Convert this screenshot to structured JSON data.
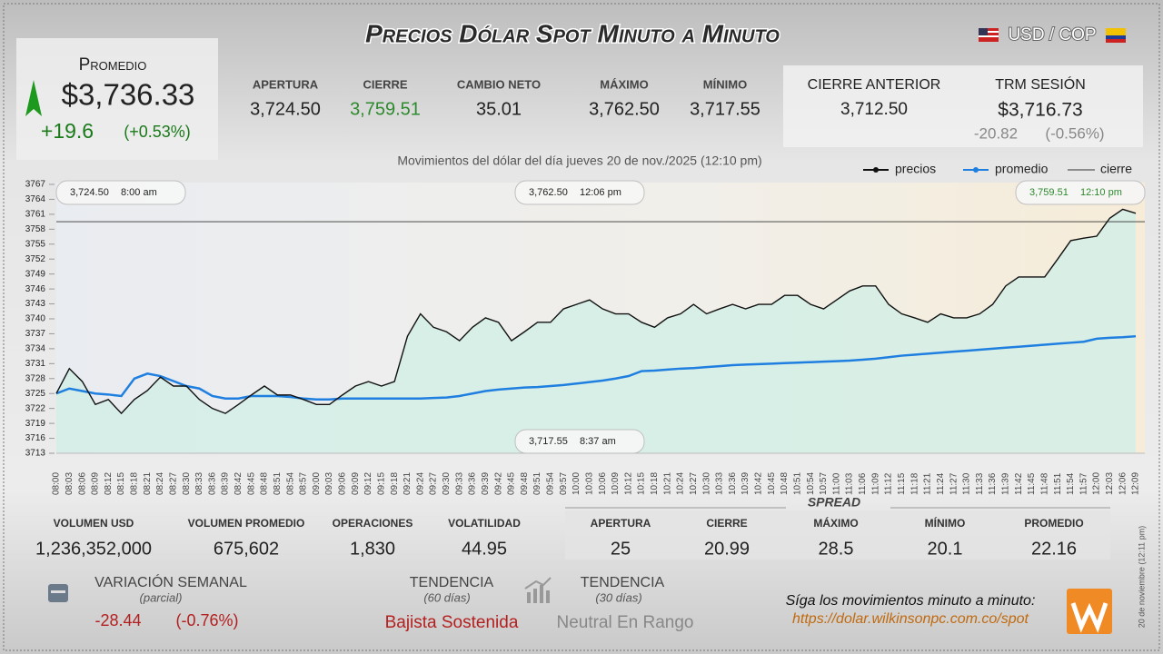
{
  "header": {
    "title": "Precios Dólar Spot Minuto a Minuto",
    "pair": "USD / COP"
  },
  "promedio": {
    "label": "Promedio",
    "value": "$3,736.33",
    "change": "+19.6",
    "change_pct": "(+0.53%)"
  },
  "stats": [
    {
      "label": "APERTURA",
      "value": "3,724.50"
    },
    {
      "label": "CIERRE",
      "value": "3,759.51"
    },
    {
      "label": "CAMBIO NETO",
      "value": "35.01"
    },
    {
      "label": "MÁXIMO",
      "value": "3,762.50"
    },
    {
      "label": "MÍNIMO",
      "value": "3,717.55"
    }
  ],
  "previous": {
    "label": "CIERRE ANTERIOR",
    "value": "3,712.50"
  },
  "trm": {
    "label": "TRM SESIÓN",
    "value": "$3,716.73",
    "change": "-20.82",
    "change_pct": "(-0.56%)"
  },
  "chart_data": {
    "type": "line",
    "subtitle": "Movimientos del dólar del día jueves 20 de nov./2025 (12:10 pm)",
    "categories": [
      "08:00",
      "08:03",
      "08:06",
      "08:09",
      "08:12",
      "08:15",
      "08:18",
      "08:21",
      "08:24",
      "08:27",
      "08:30",
      "08:33",
      "08:36",
      "08:39",
      "08:42",
      "08:45",
      "08:48",
      "08:51",
      "08:54",
      "08:57",
      "09:00",
      "09:03",
      "09:06",
      "09:09",
      "09:12",
      "09:15",
      "09:18",
      "09:21",
      "09:24",
      "09:27",
      "09:30",
      "09:33",
      "09:36",
      "09:39",
      "09:42",
      "09:45",
      "09:48",
      "09:51",
      "09:54",
      "09:57",
      "10:00",
      "10:03",
      "10:06",
      "10:09",
      "10:12",
      "10:15",
      "10:18",
      "10:21",
      "10:24",
      "10:27",
      "10:30",
      "10:33",
      "10:36",
      "10:39",
      "10:42",
      "10:45",
      "10:48",
      "10:51",
      "10:54",
      "10:57",
      "11:00",
      "11:03",
      "11:06",
      "11:09",
      "11:12",
      "11:15",
      "11:18",
      "11:21",
      "11:24",
      "11:27",
      "11:30",
      "11:33",
      "11:36",
      "11:39",
      "11:42",
      "11:45",
      "11:48",
      "11:51",
      "11:54",
      "11:57",
      "12:00",
      "12:03",
      "12:06",
      "12:09"
    ],
    "series": [
      {
        "name": "precios",
        "color": "#111111",
        "values": [
          3725,
          3730,
          3727.4,
          3722.8,
          3723.8,
          3721,
          3723.8,
          3725.6,
          3728.3,
          3726.5,
          3726.5,
          3723.8,
          3722,
          3721,
          3722.8,
          3724.7,
          3726.5,
          3724.7,
          3724.7,
          3723.8,
          3722.8,
          3722.8,
          3724.7,
          3726.5,
          3727.4,
          3726.5,
          3727.4,
          3736.5,
          3741,
          3738.3,
          3737.4,
          3735.6,
          3738.3,
          3740.2,
          3739.3,
          3735.6,
          3737.4,
          3739.3,
          3739.3,
          3742,
          3742.9,
          3743.8,
          3742,
          3741,
          3741,
          3739.3,
          3738.3,
          3740.2,
          3741,
          3742.9,
          3741,
          3742,
          3742.9,
          3742,
          3742.9,
          3742.9,
          3744.7,
          3744.7,
          3742.9,
          3742,
          3743.8,
          3745.6,
          3746.6,
          3746.6,
          3742.9,
          3741,
          3740.2,
          3739.3,
          3741,
          3740.2,
          3740.2,
          3741,
          3742.9,
          3746.6,
          3748.4,
          3748.4,
          3748.4,
          3752,
          3755.7,
          3756.2,
          3756.6,
          3760.2,
          3762,
          3761.2
        ]
      },
      {
        "name": "promedio",
        "color": "#1f7fe0",
        "values": [
          3725,
          3726,
          3725.5,
          3725,
          3724.8,
          3724.5,
          3728,
          3729,
          3728.5,
          3727.5,
          3726.5,
          3726,
          3724.5,
          3724,
          3724,
          3724.5,
          3724.5,
          3724.5,
          3724.3,
          3724,
          3723.8,
          3723.8,
          3724,
          3724,
          3724,
          3724,
          3724,
          3724,
          3724,
          3724.1,
          3724.2,
          3724.5,
          3725,
          3725.5,
          3725.8,
          3726,
          3726.2,
          3726.3,
          3726.5,
          3726.7,
          3727,
          3727.3,
          3727.6,
          3728,
          3728.5,
          3729.5,
          3729.6,
          3729.8,
          3730,
          3730.1,
          3730.3,
          3730.5,
          3730.7,
          3730.8,
          3730.9,
          3731,
          3731.1,
          3731.2,
          3731.3,
          3731.4,
          3731.5,
          3731.6,
          3731.8,
          3732,
          3732.3,
          3732.6,
          3732.8,
          3733,
          3733.2,
          3733.4,
          3733.6,
          3733.8,
          3734,
          3734.2,
          3734.4,
          3734.6,
          3734.8,
          3735,
          3735.2,
          3735.4,
          3736,
          3736.2,
          3736.3,
          3736.5
        ]
      }
    ],
    "reference_line": {
      "name": "cierre",
      "value": 3759.51,
      "color": "#333333"
    },
    "annotations": [
      {
        "value": "3,724.50",
        "time": "8:00 am"
      },
      {
        "value": "3,762.50",
        "time": "12:06 pm"
      },
      {
        "value": "3,759.51",
        "time": "12:10 pm"
      },
      {
        "value": "3,717.55",
        "time": "8:37 am"
      }
    ],
    "ylim": [
      3713,
      3767
    ],
    "yticks": [
      3713,
      3716,
      3719,
      3722,
      3725,
      3728,
      3731,
      3734,
      3737,
      3740,
      3743,
      3746,
      3749,
      3752,
      3755,
      3758,
      3761,
      3764,
      3767
    ],
    "grid": false,
    "area_color": "#d4efe6"
  },
  "volume": [
    {
      "label": "VOLUMEN USD",
      "value": "1,236,352,000"
    },
    {
      "label": "VOLUMEN PROMEDIO",
      "value": "675,602"
    },
    {
      "label": "OPERACIONES",
      "value": "1,830"
    },
    {
      "label": "VOLATILIDAD",
      "value": "44.95"
    }
  ],
  "spread": {
    "title": "SPREAD",
    "items": [
      {
        "label": "APERTURA",
        "value": "25"
      },
      {
        "label": "CIERRE",
        "value": "20.99"
      },
      {
        "label": "MÁXIMO",
        "value": "28.5"
      },
      {
        "label": "MÍNIMO",
        "value": "20.1"
      },
      {
        "label": "PROMEDIO",
        "value": "22.16"
      }
    ]
  },
  "weekly": {
    "label": "VARIACIÓN SEMANAL",
    "sublabel": "(parcial)",
    "change": "-28.44",
    "change_pct": "(-0.76%)"
  },
  "trend60": {
    "label": "TENDENCIA",
    "sublabel": "(60 días)",
    "value": "Bajista Sostenida"
  },
  "trend30": {
    "label": "TENDENCIA",
    "sublabel": "(30 días)",
    "value": "Neutral En Rango"
  },
  "footer": {
    "cta": "Síga los movimientos minuto a minuto:",
    "url": "https://dolar.wilkinsonpc.com.co/spot",
    "stamp": "20 de noviembre (12:11 pm)"
  }
}
